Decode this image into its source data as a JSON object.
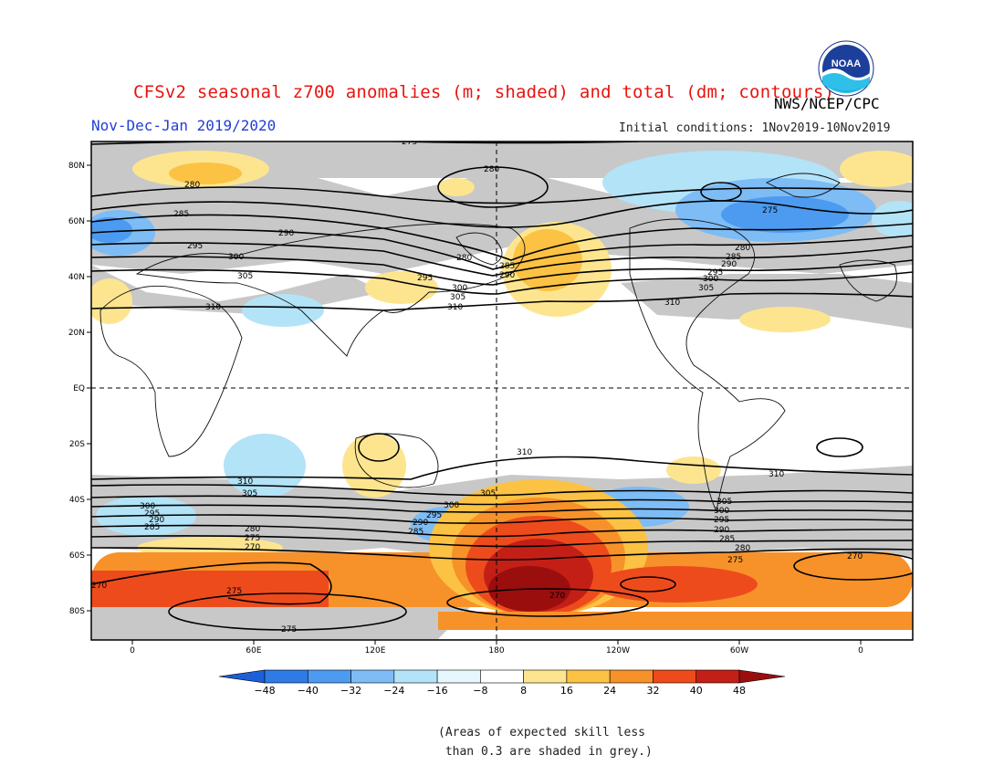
{
  "header": {
    "title": "CFSv2 seasonal z700 anomalies (m; shaded) and total (dm; contours)",
    "period": "Nov-Dec-Jan 2019/2020",
    "agency": "NWS/NCEP/CPC",
    "initial_conditions": "Initial conditions: 1Nov2019-10Nov2019",
    "logo_text": "NOAA"
  },
  "map": {
    "lat_labels": [
      "80N",
      "60N",
      "40N",
      "20N",
      "EQ",
      "20S",
      "40S",
      "60S",
      "80S"
    ],
    "lon_labels": [
      "0",
      "60E",
      "120E",
      "180",
      "120W",
      "60W",
      "0"
    ],
    "contour_labels": [
      "275",
      "280",
      "285",
      "290",
      "295",
      "300",
      "305",
      "310",
      "270"
    ]
  },
  "legend": {
    "levels": [
      "-48",
      "-40",
      "-32",
      "-24",
      "-16",
      "-8",
      "8",
      "16",
      "24",
      "32",
      "40",
      "48"
    ],
    "colors": [
      "#1c5fd9",
      "#2e7be6",
      "#4c9bf0",
      "#7dbcf5",
      "#b3e3f7",
      "#e6f8fb",
      "#ffffff",
      "#fde58f",
      "#fbc244",
      "#f7922a",
      "#ee4b1d",
      "#c41f17",
      "#9a0e0e"
    ],
    "note": "(Areas of expected skill less\n than 0.3 are shaded in grey.)",
    "skill_color": "#c8c8c8"
  }
}
